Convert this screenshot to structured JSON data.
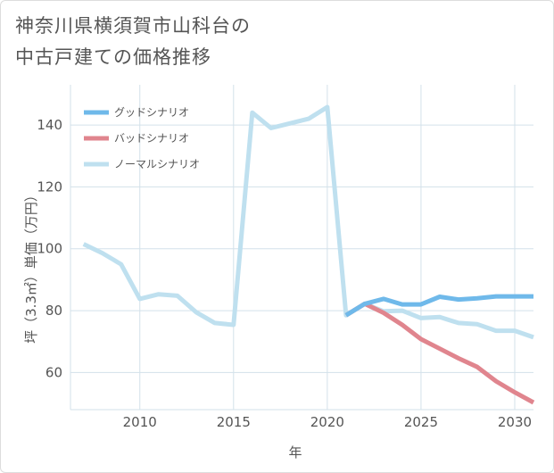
{
  "title_lines": [
    "神奈川県横須賀市山科台の",
    "中古戸建ての価格推移"
  ],
  "chart_data": {
    "type": "line",
    "xlabel": "年",
    "ylabel": "坪（3.3㎡）単価（万円）",
    "xlim": [
      2006.3,
      2031
    ],
    "ylim": [
      48,
      153
    ],
    "xticks": [
      2010,
      2015,
      2020,
      2025,
      2030
    ],
    "yticks": [
      60,
      80,
      100,
      120,
      140
    ],
    "grid": true,
    "legend_position": "top-left",
    "series": [
      {
        "name": "グッドシナリオ",
        "color": "#6fb9ea",
        "points": [
          [
            2021,
            78.5
          ],
          [
            2022,
            82.2
          ],
          [
            2023,
            83.8
          ],
          [
            2024,
            82.0
          ],
          [
            2025,
            82.0
          ],
          [
            2026,
            84.5
          ],
          [
            2027,
            83.6
          ],
          [
            2028,
            84.0
          ],
          [
            2029,
            84.6
          ],
          [
            2030,
            84.6
          ],
          [
            2031,
            84.6
          ]
        ]
      },
      {
        "name": "バッドシナリオ",
        "color": "#e0858e",
        "points": [
          [
            2021,
            78.5
          ],
          [
            2022,
            82.2
          ],
          [
            2023,
            79.3
          ],
          [
            2024,
            75.4
          ],
          [
            2025,
            70.8
          ],
          [
            2026,
            67.7
          ],
          [
            2027,
            64.6
          ],
          [
            2028,
            61.8
          ],
          [
            2029,
            57.2
          ],
          [
            2030,
            53.6
          ],
          [
            2031,
            50.3
          ]
        ]
      },
      {
        "name": "ノーマルシナリオ",
        "color": "#bfe0ef",
        "points": [
          [
            2007,
            101.5
          ],
          [
            2008,
            98.6
          ],
          [
            2009,
            95.0
          ],
          [
            2010,
            83.8
          ],
          [
            2011,
            85.3
          ],
          [
            2012,
            84.8
          ],
          [
            2013,
            79.5
          ],
          [
            2014,
            76.0
          ],
          [
            2015,
            75.4
          ],
          [
            2016,
            144.0
          ],
          [
            2017,
            139.0
          ],
          [
            2018,
            140.5
          ],
          [
            2019,
            142.0
          ],
          [
            2020,
            145.8
          ],
          [
            2021,
            78.5
          ],
          [
            2022,
            82.2
          ],
          [
            2023,
            79.8
          ],
          [
            2024,
            80.0
          ],
          [
            2025,
            77.6
          ],
          [
            2026,
            77.9
          ],
          [
            2027,
            76.0
          ],
          [
            2028,
            75.6
          ],
          [
            2029,
            73.5
          ],
          [
            2030,
            73.5
          ],
          [
            2031,
            71.4
          ]
        ]
      }
    ]
  }
}
